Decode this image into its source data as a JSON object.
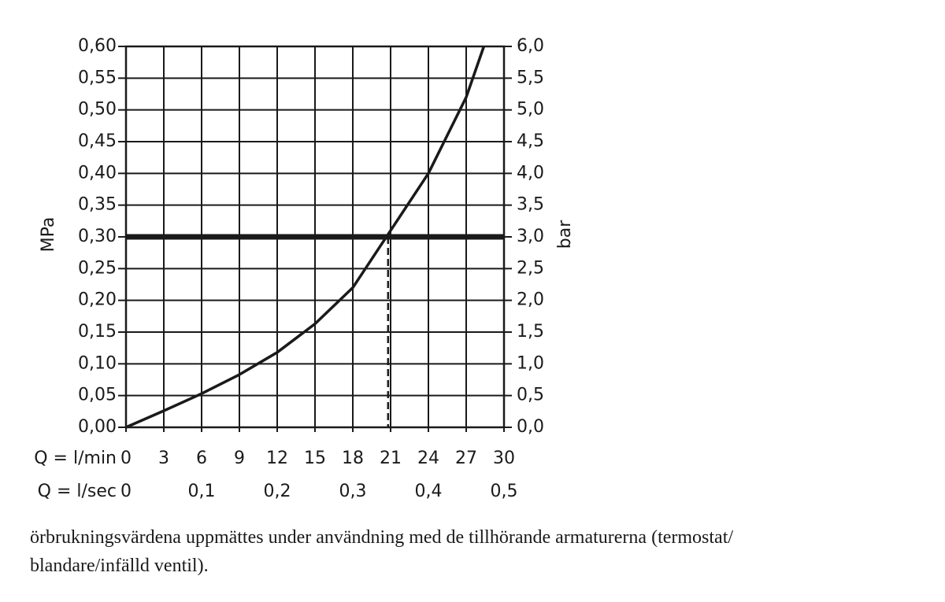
{
  "chart_data": {
    "type": "line",
    "x_label": "Q = l/min",
    "x2_label": "Q = l/sec",
    "y_label": "MPa",
    "y2_label": "bar",
    "xlim": [
      0,
      30
    ],
    "xticks": [
      0,
      3,
      6,
      9,
      12,
      15,
      18,
      21,
      24,
      27,
      30
    ],
    "x2lim": [
      0,
      0.5
    ],
    "x2ticks": [
      0,
      {
        "value": 0.1,
        "label": "0,1"
      },
      {
        "value": 0.2,
        "label": "0,2"
      },
      {
        "value": 0.3,
        "label": "0,3"
      },
      {
        "value": 0.4,
        "label": "0,4"
      },
      {
        "value": 0.5,
        "label": "0,5"
      }
    ],
    "ylim": [
      0,
      0.6
    ],
    "yticks": [
      {
        "value": 0,
        "label": "0,00"
      },
      {
        "value": 0.05,
        "label": "0,05"
      },
      {
        "value": 0.1,
        "label": "0,10"
      },
      {
        "value": 0.15,
        "label": "0,15"
      },
      {
        "value": 0.2,
        "label": "0,20"
      },
      {
        "value": 0.25,
        "label": "0,25"
      },
      {
        "value": 0.3,
        "label": "0,30"
      },
      {
        "value": 0.35,
        "label": "0,35"
      },
      {
        "value": 0.4,
        "label": "0,40"
      },
      {
        "value": 0.45,
        "label": "0,45"
      },
      {
        "value": 0.5,
        "label": "0,50"
      },
      {
        "value": 0.55,
        "label": "0,55"
      },
      {
        "value": 0.6,
        "label": "0,60"
      }
    ],
    "y2lim": [
      0,
      6
    ],
    "y2ticks": [
      {
        "value": 0,
        "label": "0,0"
      },
      {
        "value": 0.5,
        "label": "0,5"
      },
      {
        "value": 1,
        "label": "1,0"
      },
      {
        "value": 1.5,
        "label": "1,5"
      },
      {
        "value": 2,
        "label": "2,0"
      },
      {
        "value": 2.5,
        "label": "2,5"
      },
      {
        "value": 3,
        "label": "3,0"
      },
      {
        "value": 3.5,
        "label": "3,5"
      },
      {
        "value": 4,
        "label": "4,0"
      },
      {
        "value": 4.5,
        "label": "4,5"
      },
      {
        "value": 5,
        "label": "5,0"
      },
      {
        "value": 5.5,
        "label": "5,5"
      },
      {
        "value": 6,
        "label": "6,0"
      }
    ],
    "grid": true,
    "x": [
      0,
      3,
      6,
      9,
      12,
      15,
      18,
      21,
      24,
      27,
      28.4
    ],
    "series": [
      {
        "color": "#1a1a1a",
        "values": [
          0,
          0.026,
          0.053,
          0.083,
          0.118,
          0.163,
          0.22,
          0.31,
          0.4,
          0.52,
          0.6
        ]
      }
    ],
    "threshold": {
      "x": 20.8,
      "y": 0.3
    },
    "caption": [
      "örbrukningsvärdena uppmättes under användning med de tillhörande armaturerna (termostat/",
      "blandare/infälld ventil)."
    ]
  }
}
